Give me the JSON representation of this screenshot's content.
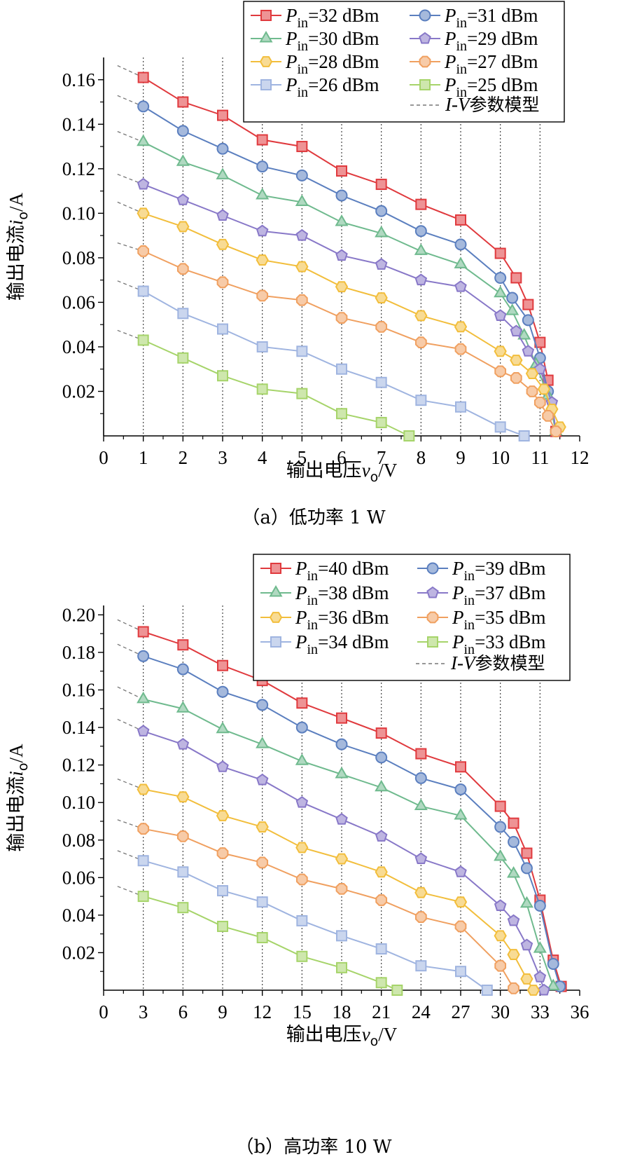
{
  "chart_data": [
    {
      "type": "line",
      "caption": "（a）低功率 1 W",
      "xlabel": "输出电压v_o/V",
      "ylabel": "输出电流i_o/A",
      "xlim": [
        0,
        12
      ],
      "ylim": [
        0,
        0.17
      ],
      "x_ticks": [
        "0",
        "1",
        "2",
        "3",
        "4",
        "5",
        "6",
        "7",
        "8",
        "9",
        "10",
        "11",
        "12"
      ],
      "y_ticks": [
        "0.02",
        "0.04",
        "0.06",
        "0.08",
        "0.10",
        "0.12",
        "0.14",
        "0.16"
      ],
      "legend_position": "top-right",
      "model_label": "I-V参数模型",
      "series": [
        {
          "name": "P_in=32 dBm",
          "pin": "32",
          "color": "#e03a3e",
          "marker": "square",
          "x": [
            1,
            2,
            3,
            4,
            5,
            6,
            7,
            8,
            9,
            10,
            10.4,
            10.7,
            11,
            11.2,
            11.4
          ],
          "y": [
            0.161,
            0.15,
            0.144,
            0.133,
            0.13,
            0.119,
            0.113,
            0.104,
            0.097,
            0.082,
            0.071,
            0.059,
            0.042,
            0.025,
            0.002
          ]
        },
        {
          "name": "P_in=31 dBm",
          "pin": "31",
          "color": "#5b7fbf",
          "marker": "circle",
          "x": [
            1,
            2,
            3,
            4,
            5,
            6,
            7,
            8,
            9,
            10,
            10.3,
            10.7,
            11,
            11.2,
            11.4
          ],
          "y": [
            0.148,
            0.137,
            0.129,
            0.121,
            0.117,
            0.108,
            0.101,
            0.092,
            0.086,
            0.071,
            0.062,
            0.052,
            0.035,
            0.02,
            0.002
          ]
        },
        {
          "name": "P_in=30 dBm",
          "pin": "30",
          "color": "#6fba8e",
          "marker": "triangle",
          "x": [
            1,
            2,
            3,
            4,
            5,
            6,
            7,
            8,
            9,
            10,
            10.3,
            10.6,
            10.9,
            11.2,
            11.4
          ],
          "y": [
            0.132,
            0.123,
            0.117,
            0.108,
            0.105,
            0.096,
            0.091,
            0.083,
            0.077,
            0.064,
            0.056,
            0.045,
            0.032,
            0.018,
            0.002
          ]
        },
        {
          "name": "P_in=29 dBm",
          "pin": "29",
          "color": "#8878c8",
          "marker": "pentagon",
          "x": [
            1,
            2,
            3,
            4,
            5,
            6,
            7,
            8,
            9,
            10,
            10.4,
            10.7,
            11,
            11.3,
            11.4
          ],
          "y": [
            0.113,
            0.106,
            0.099,
            0.092,
            0.09,
            0.081,
            0.077,
            0.07,
            0.067,
            0.054,
            0.047,
            0.038,
            0.03,
            0.015,
            0.002
          ]
        },
        {
          "name": "P_in=28 dBm",
          "pin": "28",
          "color": "#f2be3c",
          "marker": "hexagon",
          "x": [
            1,
            2,
            3,
            4,
            5,
            6,
            7,
            8,
            9,
            10,
            10.4,
            10.8,
            11.1,
            11.3,
            11.5
          ],
          "y": [
            0.1,
            0.094,
            0.086,
            0.079,
            0.076,
            0.067,
            0.062,
            0.054,
            0.049,
            0.038,
            0.034,
            0.028,
            0.021,
            0.012,
            0.004
          ]
        },
        {
          "name": "P_in=27 dBm",
          "pin": "27",
          "color": "#f0a060",
          "marker": "octagon",
          "x": [
            1,
            2,
            3,
            4,
            5,
            6,
            7,
            8,
            9,
            10,
            10.4,
            10.8,
            11,
            11.2,
            11.4
          ],
          "y": [
            0.083,
            0.075,
            0.069,
            0.063,
            0.061,
            0.053,
            0.049,
            0.042,
            0.039,
            0.029,
            0.026,
            0.02,
            0.015,
            0.009,
            0.002
          ]
        },
        {
          "name": "P_in=26 dBm",
          "pin": "26",
          "color": "#9fb4e0",
          "marker": "square",
          "x": [
            1,
            2,
            3,
            4,
            5,
            6,
            7,
            8,
            9,
            10,
            10.6
          ],
          "y": [
            0.065,
            0.055,
            0.048,
            0.04,
            0.038,
            0.03,
            0.024,
            0.016,
            0.013,
            0.004,
            0.0
          ]
        },
        {
          "name": "P_in=25 dBm",
          "pin": "25",
          "color": "#a6d46a",
          "marker": "square",
          "x": [
            1,
            2,
            3,
            4,
            5,
            6,
            7,
            7.7
          ],
          "y": [
            0.043,
            0.035,
            0.027,
            0.021,
            0.019,
            0.01,
            0.006,
            0.0
          ]
        }
      ]
    },
    {
      "type": "line",
      "caption": "（b）高功率 10 W",
      "xlabel": "输出电压v_o/V",
      "ylabel": "输出电流i_o/A",
      "xlim": [
        0,
        36
      ],
      "ylim": [
        0,
        0.205
      ],
      "x_ticks": [
        "0",
        "3",
        "6",
        "9",
        "12",
        "15",
        "18",
        "21",
        "24",
        "27",
        "30",
        "33",
        "36"
      ],
      "y_ticks": [
        "0.02",
        "0.04",
        "0.06",
        "0.08",
        "0.10",
        "0.12",
        "0.14",
        "0.16",
        "0.18",
        "0.20"
      ],
      "legend_position": "top-right",
      "model_label": "I-V参数模型",
      "series": [
        {
          "name": "P_in=40 dBm",
          "pin": "40",
          "color": "#e03a3e",
          "marker": "square",
          "x": [
            3,
            6,
            9,
            12,
            15,
            18,
            21,
            24,
            27,
            30,
            31,
            32,
            33,
            34,
            34.6
          ],
          "y": [
            0.191,
            0.184,
            0.173,
            0.165,
            0.153,
            0.145,
            0.137,
            0.126,
            0.119,
            0.098,
            0.089,
            0.073,
            0.048,
            0.016,
            0.002
          ]
        },
        {
          "name": "P_in=39 dBm",
          "pin": "39",
          "color": "#5b7fbf",
          "marker": "circle",
          "x": [
            3,
            6,
            9,
            12,
            15,
            18,
            21,
            24,
            27,
            30,
            31,
            32,
            33,
            34,
            34.5
          ],
          "y": [
            0.178,
            0.171,
            0.159,
            0.152,
            0.14,
            0.131,
            0.124,
            0.113,
            0.107,
            0.087,
            0.079,
            0.065,
            0.045,
            0.014,
            0.002
          ]
        },
        {
          "name": "P_in=38 dBm",
          "pin": "38",
          "color": "#6fba8e",
          "marker": "triangle",
          "x": [
            3,
            6,
            9,
            12,
            15,
            18,
            21,
            24,
            27,
            30,
            31,
            32,
            33,
            34
          ],
          "y": [
            0.155,
            0.15,
            0.139,
            0.131,
            0.122,
            0.115,
            0.108,
            0.098,
            0.093,
            0.071,
            0.062,
            0.046,
            0.022,
            0.002
          ]
        },
        {
          "name": "P_in=37 dBm",
          "pin": "37",
          "color": "#8878c8",
          "marker": "pentagon",
          "x": [
            3,
            6,
            9,
            12,
            15,
            18,
            21,
            24,
            27,
            30,
            31,
            32,
            33,
            33.3
          ],
          "y": [
            0.138,
            0.131,
            0.119,
            0.112,
            0.1,
            0.091,
            0.082,
            0.07,
            0.063,
            0.045,
            0.037,
            0.024,
            0.007,
            0.0
          ]
        },
        {
          "name": "P_in=36 dBm",
          "pin": "36",
          "color": "#f2be3c",
          "marker": "hexagon",
          "x": [
            3,
            6,
            9,
            12,
            15,
            18,
            21,
            24,
            27,
            30,
            31,
            32,
            32.5
          ],
          "y": [
            0.107,
            0.103,
            0.093,
            0.087,
            0.076,
            0.07,
            0.063,
            0.052,
            0.047,
            0.029,
            0.019,
            0.006,
            0.0
          ]
        },
        {
          "name": "P_in=35 dBm",
          "pin": "35",
          "color": "#f0a060",
          "marker": "octagon",
          "x": [
            3,
            6,
            9,
            12,
            15,
            18,
            21,
            24,
            27,
            30,
            31
          ],
          "y": [
            0.086,
            0.082,
            0.073,
            0.068,
            0.059,
            0.054,
            0.048,
            0.039,
            0.034,
            0.013,
            0.001
          ]
        },
        {
          "name": "P_in=34 dBm",
          "pin": "34",
          "color": "#9fb4e0",
          "marker": "square",
          "x": [
            3,
            6,
            9,
            12,
            15,
            18,
            21,
            24,
            27,
            29
          ],
          "y": [
            0.069,
            0.063,
            0.053,
            0.047,
            0.037,
            0.029,
            0.022,
            0.013,
            0.01,
            0.0
          ]
        },
        {
          "name": "P_in=33 dBm",
          "pin": "33",
          "color": "#a6d46a",
          "marker": "square",
          "x": [
            3,
            6,
            9,
            12,
            15,
            18,
            21,
            22.2
          ],
          "y": [
            0.05,
            0.044,
            0.034,
            0.028,
            0.018,
            0.012,
            0.004,
            0.0
          ]
        }
      ]
    }
  ]
}
